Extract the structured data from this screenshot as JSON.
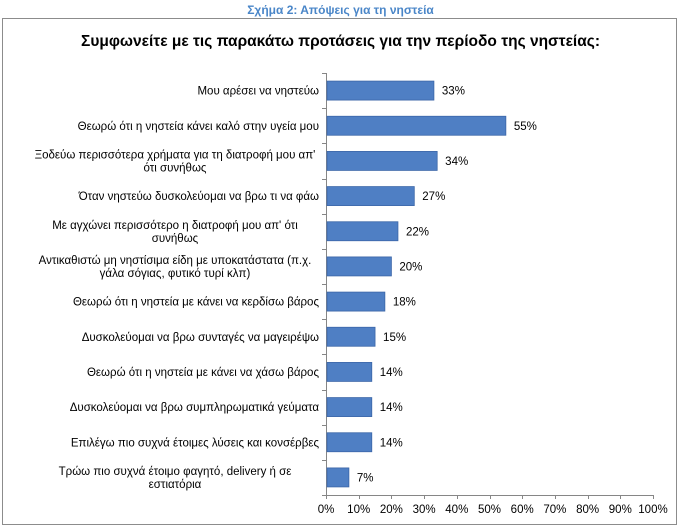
{
  "caption": "Σχήμα 2: Απόψεις για τη νηστεία",
  "colors": {
    "bar": "#4f7fc4",
    "bar_edge": "#3b66a8",
    "caption": "#4a86c8",
    "axis": "#868686"
  },
  "chart_data": {
    "type": "bar",
    "orientation": "horizontal",
    "title": "Συμφωνείτε με τις παρακάτω προτάσεις για την περίοδο της νηστείας:",
    "categories": [
      [
        "Μου αρέσει να νηστεύω"
      ],
      [
        "Θεωρώ ότι η νηστεία κάνει καλό στην υγεία μου"
      ],
      [
        "Ξοδεύω περισσότερα χρήματα για τη διατροφή μου απ'",
        "ότι συνήθως"
      ],
      [
        "Όταν νηστεύω δυσκολεύομαι να βρω τι να φάω"
      ],
      [
        "Με αγχώνει περισσότερο η διατροφή μου απ' ότι",
        "συνήθως"
      ],
      [
        "Αντικαθιστώ μη νηστίσιμα είδη με υποκατάστατα (π.χ.",
        "γάλα σόγιας, φυτικό τυρί κλπ)"
      ],
      [
        "Θεωρώ ότι η νηστεία με κάνει να κερδίσω βάρος"
      ],
      [
        "Δυσκολεύομαι να βρω συνταγές να μαγειρέψω"
      ],
      [
        "Θεωρώ ότι η νηστεία με κάνει να χάσω βάρος"
      ],
      [
        "Δυσκολεύομαι να βρω συμπληρωματικά γεύματα"
      ],
      [
        "Επιλέγω πιο συχνά έτοιμες λύσεις και κονσέρβες"
      ],
      [
        "Τρώω πιο συχνά έτοιμο φαγητό, delivery ή σε",
        "εστιατόρια"
      ]
    ],
    "values": [
      33,
      55,
      34,
      27,
      22,
      20,
      18,
      15,
      14,
      14,
      14,
      7
    ],
    "value_labels": [
      "33%",
      "55%",
      "34%",
      "27%",
      "22%",
      "20%",
      "18%",
      "15%",
      "14%",
      "14%",
      "14%",
      "7%"
    ],
    "xlim": [
      0,
      100
    ],
    "xticks": [
      "0%",
      "10%",
      "20%",
      "30%",
      "40%",
      "50%",
      "60%",
      "70%",
      "80%",
      "90%",
      "100%"
    ],
    "xlabel": "",
    "ylabel": "",
    "grid": false,
    "legend": "none"
  }
}
